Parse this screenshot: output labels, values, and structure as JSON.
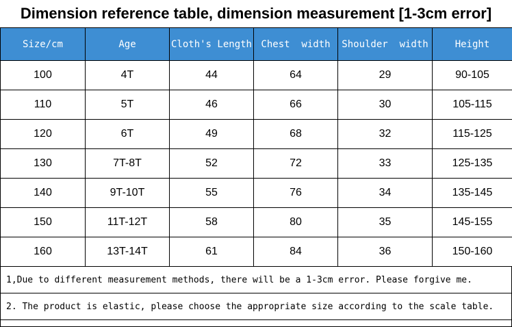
{
  "title": "Dimension reference table, dimension measurement [1-3cm error]",
  "chart_data": {
    "type": "table",
    "title": "Dimension reference table, dimension measurement [1-3cm error]",
    "headers": [
      "Size/cm",
      "Age",
      "Cloth's Length",
      "Chest  width",
      "Shoulder  width",
      "Height"
    ],
    "rows": [
      [
        "100",
        "4T",
        "44",
        "64",
        "29",
        "90-105"
      ],
      [
        "110",
        "5T",
        "46",
        "66",
        "30",
        "105-115"
      ],
      [
        "120",
        "6T",
        "49",
        "68",
        "32",
        "115-125"
      ],
      [
        "130",
        "7T-8T",
        "52",
        "72",
        "33",
        "125-135"
      ],
      [
        "140",
        "9T-10T",
        "55",
        "76",
        "34",
        "135-145"
      ],
      [
        "150",
        "11T-12T",
        "58",
        "80",
        "35",
        "145-155"
      ],
      [
        "160",
        "13T-14T",
        "61",
        "84",
        "36",
        "150-160"
      ]
    ]
  },
  "notes": [
    "1,Due to different measurement methods, there will be a 1-3cm error. Please forgive me.",
    "2. The product is elastic, please choose the appropriate size according to the scale table."
  ],
  "colors": {
    "header_bg": "#3e8ed3",
    "header_text": "#ffffff",
    "border": "#000000"
  }
}
